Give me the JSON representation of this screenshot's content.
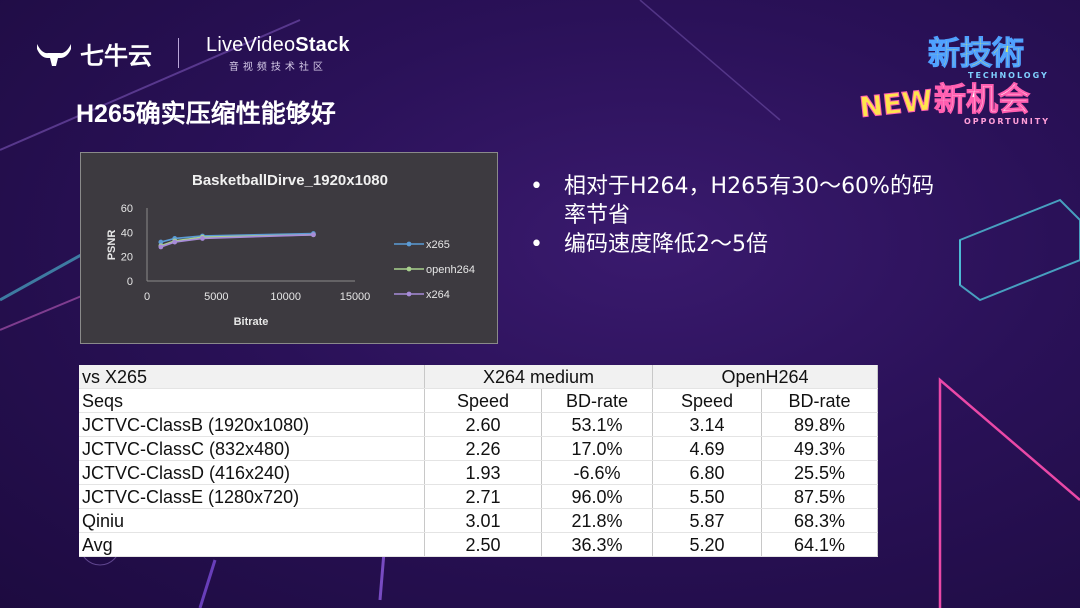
{
  "brand": {
    "qiniu_label": "七牛云",
    "lvs_main_a": "LiveVideo",
    "lvs_main_b": "Stack",
    "lvs_sub": "音视频技术社区"
  },
  "badge": {
    "line1": "新技術",
    "line1_sub": "TECHNOLOGY",
    "new_text": "NEW",
    "line2": "新机会",
    "line2_sub": "OPPORTUNITY"
  },
  "slide": {
    "title": "H265确实压缩性能够好",
    "bullets": [
      "相对于H264，H265有30～60%的码率节省",
      "编码速度降低2～5倍"
    ]
  },
  "chart_data": {
    "type": "line",
    "title": "BasketballDirve_1920x1080",
    "xlabel": "Bitrate",
    "ylabel": "PSNR",
    "xlim": [
      0,
      15000
    ],
    "ylim": [
      0,
      60
    ],
    "xticks": [
      "0",
      "5000",
      "10000",
      "15000"
    ],
    "yticks": [
      "0",
      "20",
      "40",
      "60"
    ],
    "legend_position": "right",
    "series": [
      {
        "name": "x265",
        "color": "#5b9bd5",
        "x": [
          1000,
          2000,
          4000,
          12000
        ],
        "y": [
          32,
          35,
          37,
          39
        ]
      },
      {
        "name": "openh264",
        "color": "#a9d18e",
        "x": [
          1000,
          2000,
          4000,
          12000
        ],
        "y": [
          29,
          33,
          36,
          38
        ]
      },
      {
        "name": "x264",
        "color": "#a78bd8",
        "x": [
          1000,
          2000,
          4000,
          12000
        ],
        "y": [
          28,
          32,
          35,
          38
        ]
      }
    ]
  },
  "table": {
    "header1": [
      "vs X265",
      "X264 medium",
      "OpenH264"
    ],
    "header2": [
      "Seqs",
      "Speed",
      "BD-rate",
      "Speed",
      "BD-rate"
    ],
    "rows": [
      [
        "JCTVC-ClassB (1920x1080)",
        "2.60",
        "53.1%",
        "3.14",
        "89.8%"
      ],
      [
        "JCTVC-ClassC (832x480)",
        "2.26",
        "17.0%",
        "4.69",
        "49.3%"
      ],
      [
        "JCTVC-ClassD (416x240)",
        "1.93",
        "-6.6%",
        "6.80",
        "25.5%"
      ],
      [
        "JCTVC-ClassE (1280x720)",
        "2.71",
        "96.0%",
        "5.50",
        "87.5%"
      ],
      [
        "Qiniu",
        "3.01",
        "21.8%",
        "5.87",
        "68.3%"
      ],
      [
        "Avg",
        "2.50",
        "36.3%",
        "5.20",
        "64.1%"
      ]
    ]
  }
}
